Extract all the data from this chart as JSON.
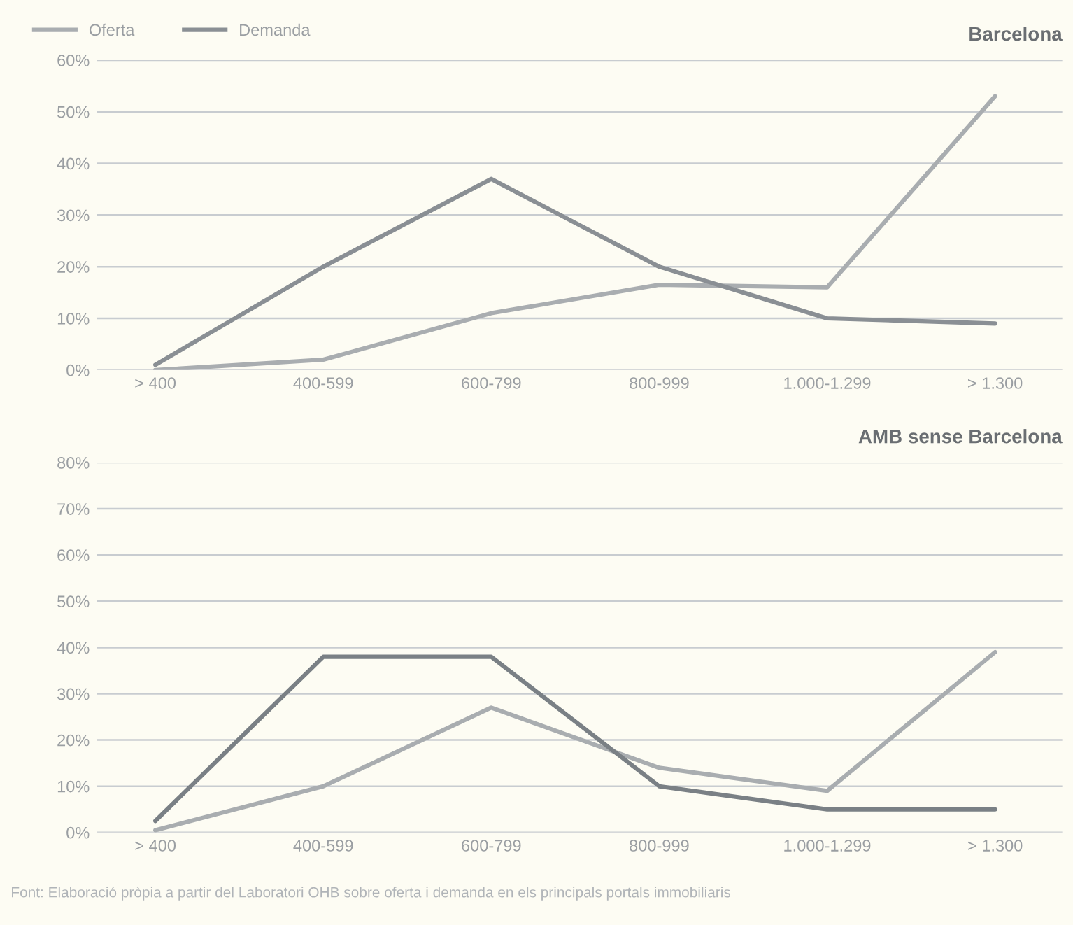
{
  "chart_data": [
    {
      "type": "line",
      "title": "Barcelona",
      "categories": [
        "> 400",
        "400-599",
        "600-799",
        "800-999",
        "1.000-1.299",
        "> 1.300"
      ],
      "series": [
        {
          "name": "Oferta",
          "color": "#a9adb0",
          "values": [
            0,
            2,
            11,
            16.5,
            16,
            53
          ]
        },
        {
          "name": "Demanda",
          "color": "#8a8f94",
          "values": [
            1,
            20,
            37,
            20,
            10,
            9
          ]
        }
      ],
      "ylim": [
        0,
        60
      ],
      "yticks": [
        {
          "value": 0,
          "label": "0%"
        },
        {
          "value": 10,
          "label": "10%"
        },
        {
          "value": 20,
          "label": "20%"
        },
        {
          "value": 30,
          "label": "30%"
        },
        {
          "value": 40,
          "label": "40%"
        },
        {
          "value": 50,
          "label": "50%"
        },
        {
          "value": 60,
          "label": "60%"
        }
      ],
      "grid": "y",
      "legend": "top left"
    },
    {
      "type": "line",
      "title": "AMB sense Barcelona",
      "categories": [
        "> 400",
        "400-599",
        "600-799",
        "800-999",
        "1.000-1.299",
        "> 1.300"
      ],
      "series": [
        {
          "color": "#a9adb0",
          "values": [
            0.5,
            10,
            27,
            14,
            9,
            39
          ]
        },
        {
          "color": "#7a8085",
          "values": [
            2.5,
            38,
            38,
            10,
            5,
            5
          ]
        }
      ],
      "ylim": [
        0,
        80
      ],
      "yticks": [
        {
          "value": 0,
          "label": "0%"
        },
        {
          "value": 10,
          "label": "10%"
        },
        {
          "value": 20,
          "label": "20%"
        },
        {
          "value": 30,
          "label": "30%"
        },
        {
          "value": 40,
          "label": "40%"
        },
        {
          "value": 50,
          "label": "50%"
        },
        {
          "value": 60,
          "label": "60%"
        },
        {
          "value": 70,
          "label": "70%"
        },
        {
          "value": 80,
          "label": "80%"
        }
      ],
      "grid": "y",
      "annotations": [
        "Font: Elaboració pròpia a partir del Laboratori OHB sobre oferta i demanda en els principals portals immobiliaris"
      ]
    }
  ]
}
